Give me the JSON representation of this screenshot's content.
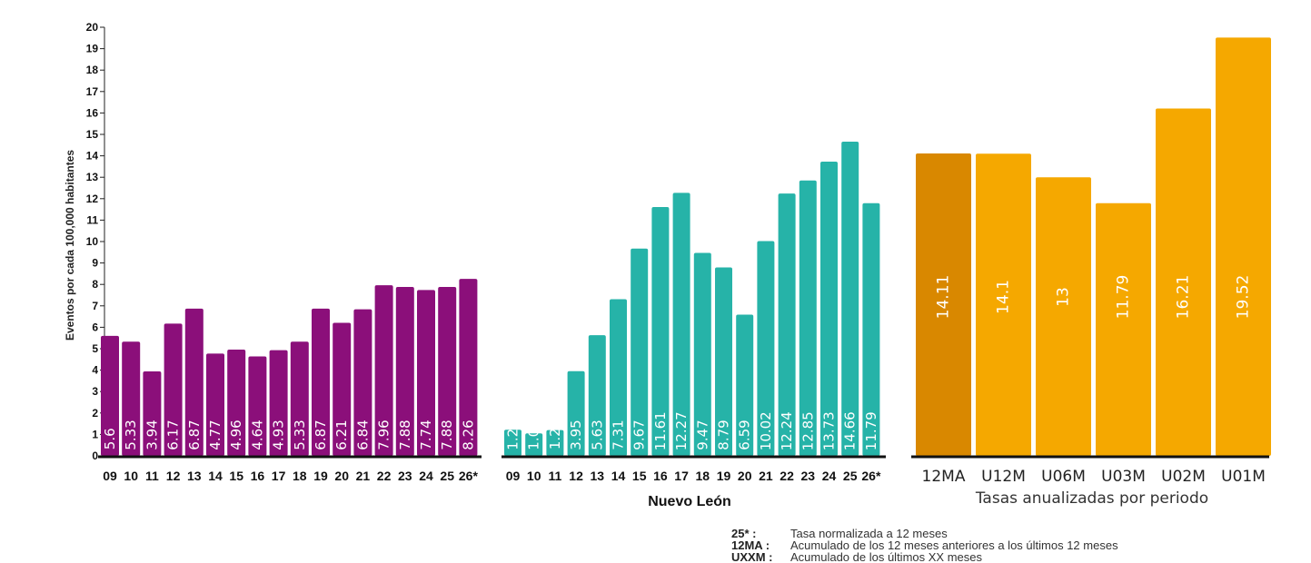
{
  "chart_data": {
    "type": "bar",
    "ylabel": "Eventos por cada 100,000 habitantes",
    "ylim": [
      0,
      20
    ],
    "yticks": [
      0,
      1,
      2,
      3,
      4,
      5,
      6,
      7,
      8,
      9,
      10,
      11,
      12,
      13,
      14,
      15,
      16,
      17,
      18,
      19,
      20
    ],
    "grid": false,
    "groups": [
      {
        "title": "",
        "color": "#8B0F7A",
        "categories": [
          "09",
          "10",
          "11",
          "12",
          "13",
          "14",
          "15",
          "16",
          "17",
          "18",
          "19",
          "20",
          "21",
          "22",
          "23",
          "24",
          "25",
          "26*"
        ],
        "values": [
          5.6,
          5.33,
          3.94,
          6.17,
          6.87,
          4.77,
          4.96,
          4.64,
          4.93,
          5.33,
          6.87,
          6.21,
          6.84,
          7.96,
          7.88,
          7.74,
          7.88,
          8.26
        ],
        "labels": [
          "5.6",
          "5.33",
          "3.94",
          "6.17",
          "6.87",
          "4.77",
          "4.96",
          "4.64",
          "4.93",
          "5.33",
          "6.87",
          "6.21",
          "6.84",
          "7.96",
          "7.88",
          "7.74",
          "7.88",
          "8.26"
        ]
      },
      {
        "title": "Nuevo León",
        "color": "#26B3A8",
        "categories": [
          "09",
          "10",
          "11",
          "12",
          "13",
          "14",
          "15",
          "16",
          "17",
          "18",
          "19",
          "20",
          "21",
          "22",
          "23",
          "24",
          "25",
          "26*"
        ],
        "values": [
          1.22,
          1.05,
          1.2,
          3.95,
          5.63,
          7.31,
          9.67,
          11.61,
          12.27,
          9.47,
          8.79,
          6.59,
          10.02,
          12.24,
          12.85,
          13.73,
          14.66,
          11.79
        ],
        "labels": [
          "1.22",
          "1.05",
          "1.2",
          "3.95",
          "5.63",
          "7.31",
          "9.67",
          "11.61",
          "12.27",
          "9.47",
          "8.79",
          "6.59",
          "10.02",
          "12.24",
          "12.85",
          "13.73",
          "14.66",
          "11.79"
        ]
      },
      {
        "title": "Tasas anualizadas por periodo",
        "color": "#F5A800",
        "highlight_color": "#D98800",
        "categories": [
          "12MA",
          "U12M",
          "U06M",
          "U03M",
          "U02M",
          "U01M"
        ],
        "values": [
          14.11,
          14.1,
          13,
          11.79,
          16.21,
          19.52
        ],
        "labels": [
          "14.11",
          "14.1",
          "13",
          "11.79",
          "16.21",
          "19.52"
        ]
      }
    ]
  },
  "legend": [
    {
      "key": "25* :",
      "desc": "Tasa normalizada a 12 meses"
    },
    {
      "key": "12MA :",
      "desc": "Acumulado de los 12 meses anteriores a los últimos 12 meses"
    },
    {
      "key": "UXXM :",
      "desc": "Acumulado de los últimos XX meses"
    }
  ]
}
